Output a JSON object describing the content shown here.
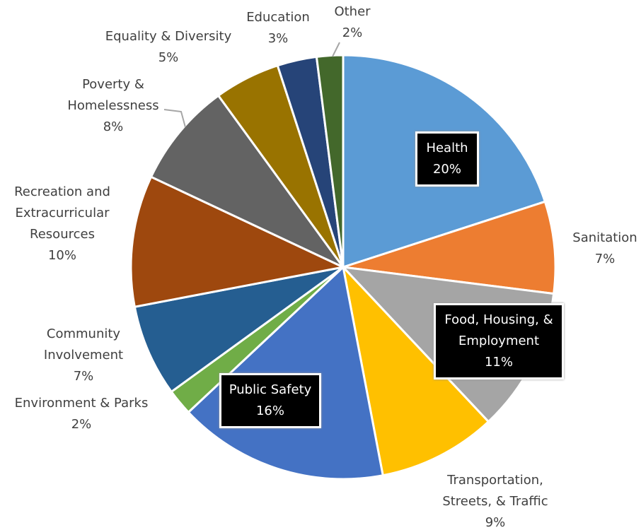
{
  "chart_data": {
    "type": "pie",
    "categories": [
      "Health",
      "Sanitation",
      "Food, Housing, & Employment",
      "Transportation, Streets, & Traffic",
      "Public Safety",
      "Environment & Parks",
      "Community Involvement",
      "Recreation and Extracurricular Resources",
      "Poverty & Homelessness",
      "Equality & Diversity",
      "Education",
      "Other"
    ],
    "values": [
      20,
      7,
      11,
      9,
      16,
      2,
      7,
      10,
      8,
      5,
      3,
      2
    ],
    "value_labels": [
      "20%",
      "7%",
      "11%",
      "9%",
      "16%",
      "2%",
      "7%",
      "10%",
      "8%",
      "5%",
      "3%",
      "2%"
    ],
    "colors": [
      "#5b9bd5",
      "#ed7d31",
      "#a5a5a5",
      "#ffc000",
      "#4472c4",
      "#70ad47",
      "#255e91",
      "#9e480e",
      "#636363",
      "#997300",
      "#264478",
      "#43682b"
    ]
  }
}
